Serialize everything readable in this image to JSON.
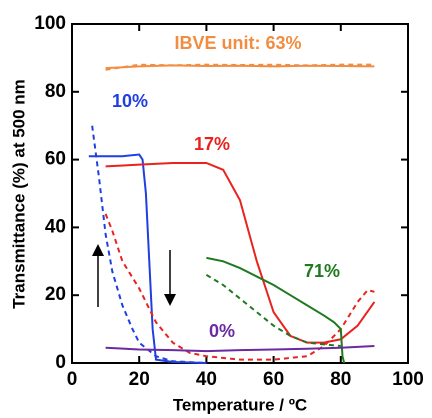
{
  "chart_data": {
    "type": "line",
    "xlabel": "Temperature / ºC",
    "ylabel": "Transmittance (%) at 500 nm",
    "xlim": [
      0,
      100
    ],
    "xticks": [
      0,
      20,
      40,
      60,
      80,
      100
    ],
    "ylim": [
      0,
      100
    ],
    "yticks": [
      0,
      20,
      40,
      60,
      80,
      100
    ],
    "series": [
      {
        "color": "#f28c40",
        "dashed": false,
        "x": [
          10,
          20,
          30,
          40,
          50,
          60,
          70,
          80,
          90
        ],
        "values": [
          87,
          87.5,
          87.8,
          87.6,
          87.7,
          87.5,
          87.7,
          87.6,
          87.5
        ]
      },
      {
        "color": "#f28c40",
        "dashed": true,
        "x": [
          10,
          20,
          30,
          40,
          50,
          60,
          70,
          80,
          90
        ],
        "values": [
          86.5,
          88,
          87.8,
          88,
          87.9,
          88,
          87.8,
          88,
          88
        ]
      },
      {
        "color": "#1f3fe0",
        "dashed": false,
        "x": [
          5,
          10,
          15,
          20,
          21,
          22,
          23,
          24,
          25,
          30,
          40
        ],
        "values": [
          61,
          61,
          61,
          61.5,
          60,
          50,
          30,
          10,
          1,
          0.3,
          0
        ]
      },
      {
        "color": "#1f3fe0",
        "dashed": true,
        "x": [
          6,
          8,
          10,
          12,
          15,
          18,
          20,
          25,
          30,
          40
        ],
        "values": [
          70,
          55,
          38,
          27,
          17,
          10,
          6,
          2,
          0.5,
          0
        ]
      },
      {
        "color": "#e8231e",
        "dashed": false,
        "x": [
          10,
          20,
          30,
          40,
          45,
          50,
          55,
          60,
          65,
          70,
          75,
          80,
          85,
          90
        ],
        "values": [
          58,
          58.5,
          59,
          59,
          57,
          48,
          30,
          15,
          8,
          6,
          6,
          7,
          11,
          18
        ]
      },
      {
        "color": "#e8231e",
        "dashed": true,
        "x": [
          10,
          12,
          15,
          20,
          25,
          30,
          35,
          40,
          50,
          60,
          70,
          75,
          80,
          85,
          88,
          90
        ],
        "values": [
          44,
          39,
          30,
          22,
          12,
          6,
          3,
          2,
          1,
          1,
          2,
          5,
          10,
          18,
          21.5,
          21
        ]
      },
      {
        "color": "#1f7a1f",
        "dashed": false,
        "x": [
          40,
          45,
          50,
          55,
          60,
          65,
          70,
          75,
          78,
          80,
          80.5,
          81
        ],
        "values": [
          31,
          30,
          28,
          25.5,
          23,
          20,
          17,
          14,
          12,
          10,
          2,
          0
        ]
      },
      {
        "color": "#1f7a1f",
        "dashed": true,
        "x": [
          40,
          45,
          50,
          55,
          60,
          65,
          70,
          75,
          80
        ],
        "values": [
          26,
          23,
          19,
          15,
          11,
          8,
          6,
          5.5,
          5
        ]
      },
      {
        "color": "#6a2aa0",
        "dashed": false,
        "x": [
          10,
          20,
          30,
          40,
          50,
          60,
          70,
          80,
          90
        ],
        "values": [
          4.5,
          4,
          3.8,
          3.5,
          3.8,
          4,
          4.2,
          4.5,
          5
        ]
      }
    ],
    "annotations": [
      {
        "text": "IBVE unit: 63%",
        "color": "#f28c40"
      },
      {
        "text": "10%",
        "color": "#1f3fe0"
      },
      {
        "text": "17%",
        "color": "#e8231e"
      },
      {
        "text": "71%",
        "color": "#1f7a1f"
      },
      {
        "text": "0%",
        "color": "#6a2aa0"
      }
    ]
  }
}
